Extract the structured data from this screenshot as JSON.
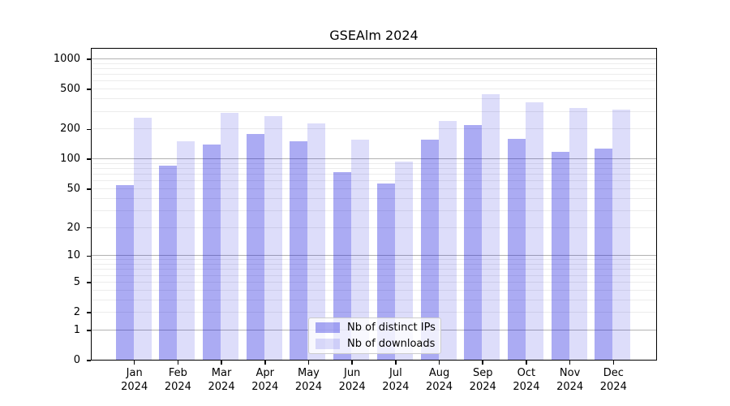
{
  "chart_data": {
    "type": "bar",
    "title": "GSEAlm 2024",
    "categories": [
      "Jan 2024",
      "Feb 2024",
      "Mar 2024",
      "Apr 2024",
      "May 2024",
      "Jun 2024",
      "Jul 2024",
      "Aug 2024",
      "Sep 2024",
      "Oct 2024",
      "Nov 2024",
      "Dec 2024"
    ],
    "series": [
      {
        "name": "Nb of distinct IPs",
        "color": "rgba(13,13,222,0.35)",
        "values": [
          54,
          85,
          137,
          175,
          149,
          73,
          56,
          156,
          216,
          159,
          117,
          127
        ]
      },
      {
        "name": "Nb of downloads",
        "color": "rgba(13,13,222,0.14)",
        "values": [
          258,
          150,
          286,
          264,
          226,
          155,
          94,
          238,
          443,
          366,
          323,
          309
        ]
      }
    ],
    "xlabel": "",
    "ylabel": "",
    "yscale": "log1p",
    "ylim": [
      0,
      1300
    ],
    "yticks_labeled": [
      0,
      1,
      2,
      5,
      10,
      20,
      50,
      100,
      200,
      500,
      1000
    ],
    "gridlines_major": [
      1,
      10,
      100,
      1000
    ],
    "gridlines_minor": [
      2,
      3,
      4,
      5,
      6,
      7,
      8,
      9,
      20,
      30,
      40,
      50,
      60,
      70,
      80,
      90,
      200,
      300,
      400,
      500,
      600,
      700,
      800,
      900
    ],
    "grid": "horizontal",
    "legend_position": "lower center inside"
  },
  "colors": {
    "grid_major": "#b2b2b2",
    "grid_minor": "#ececec",
    "axis": "#000000",
    "legend_border": "#cccccc",
    "legend_background": "rgba(255,255,255,0.8)",
    "text": "#000000"
  }
}
